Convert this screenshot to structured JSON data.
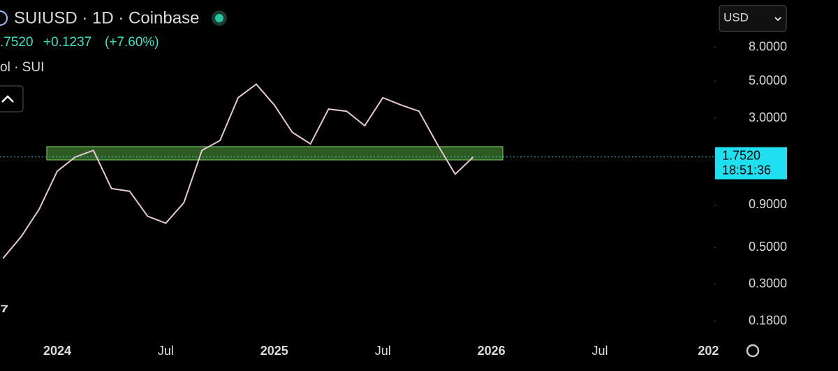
{
  "chart_data": {
    "type": "line",
    "title": "SUIUSD · 1D · Coinbase",
    "price_text": ".7520",
    "change_text": "+0.1237",
    "change_pct_text": "(+7.60%)",
    "volume_label": "ol · SUI",
    "currency": "USD",
    "last_price": {
      "value": 1.752,
      "label": "1.7520"
    },
    "countdown": "18:51:36",
    "log_scale": true,
    "x": [
      "2023-10",
      "2023-11",
      "2023-12",
      "2024-01",
      "2024-02",
      "2024-03",
      "2024-04",
      "2024-05",
      "2024-06",
      "2024-07",
      "2024-08",
      "2024-09",
      "2024-10",
      "2024-11",
      "2024-12",
      "2025-01",
      "2025-02",
      "2025-03",
      "2025-04",
      "2025-05",
      "2025-06",
      "2025-07",
      "2025-08",
      "2025-09",
      "2025-10",
      "2025-11",
      "2025-12"
    ],
    "series": [
      {
        "name": "SUIUSD",
        "color": "#e9c7da",
        "values": [
          0.43,
          0.58,
          0.85,
          1.44,
          1.75,
          1.92,
          1.13,
          1.09,
          0.77,
          0.7,
          0.93,
          1.92,
          2.2,
          3.98,
          4.8,
          3.6,
          2.46,
          2.1,
          3.4,
          3.3,
          2.7,
          3.98,
          3.6,
          3.3,
          2.1,
          1.38,
          1.752
        ]
      }
    ],
    "zone": {
      "low": 1.68,
      "high": 2.02,
      "color": "#3c7a2c"
    },
    "ylim": [
      0.148,
      15.4
    ],
    "yticks": [
      {
        "value": 8,
        "label": "8.0000"
      },
      {
        "value": 5,
        "label": "5.0000"
      },
      {
        "value": 3,
        "label": "3.0000"
      },
      {
        "value": 0.9,
        "label": "0.9000"
      },
      {
        "value": 0.5,
        "label": "0.5000"
      },
      {
        "value": 0.3,
        "label": "0.3000"
      },
      {
        "value": 0.18,
        "label": "0.1800"
      }
    ],
    "xticks": [
      {
        "value": "2024-01",
        "label": "2024"
      },
      {
        "value": "2024-07",
        "label": "Jul"
      },
      {
        "value": "2025-01",
        "label": "2025"
      },
      {
        "value": "2025-07",
        "label": "Jul"
      },
      {
        "value": "2026-01",
        "label": "2026"
      },
      {
        "value": "2026-07",
        "label": "Jul"
      },
      {
        "value": "2027-01",
        "label": "202"
      }
    ]
  }
}
